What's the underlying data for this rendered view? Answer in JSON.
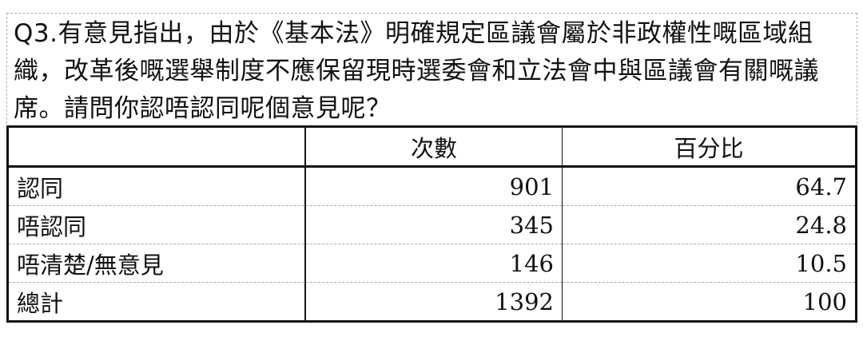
{
  "question": "Q3.有意見指出，由於《基本法》明確規定區議會屬於非政權性嘅區域組織，改革後嘅選舉制度不應保留現時選委會和立法會中與區議會有關嘅議席。請問你認唔認同呢個意見呢？",
  "table": {
    "headers": [
      "",
      "次數",
      "百分比"
    ],
    "rows": [
      {
        "label": "認同",
        "count": "901",
        "percent": "64.7"
      },
      {
        "label": "唔認同",
        "count": "345",
        "percent": "24.8"
      },
      {
        "label": "唔清楚/無意見",
        "count": "146",
        "percent": "10.5"
      },
      {
        "label": "總計",
        "count": "1392",
        "percent": "100"
      }
    ]
  }
}
